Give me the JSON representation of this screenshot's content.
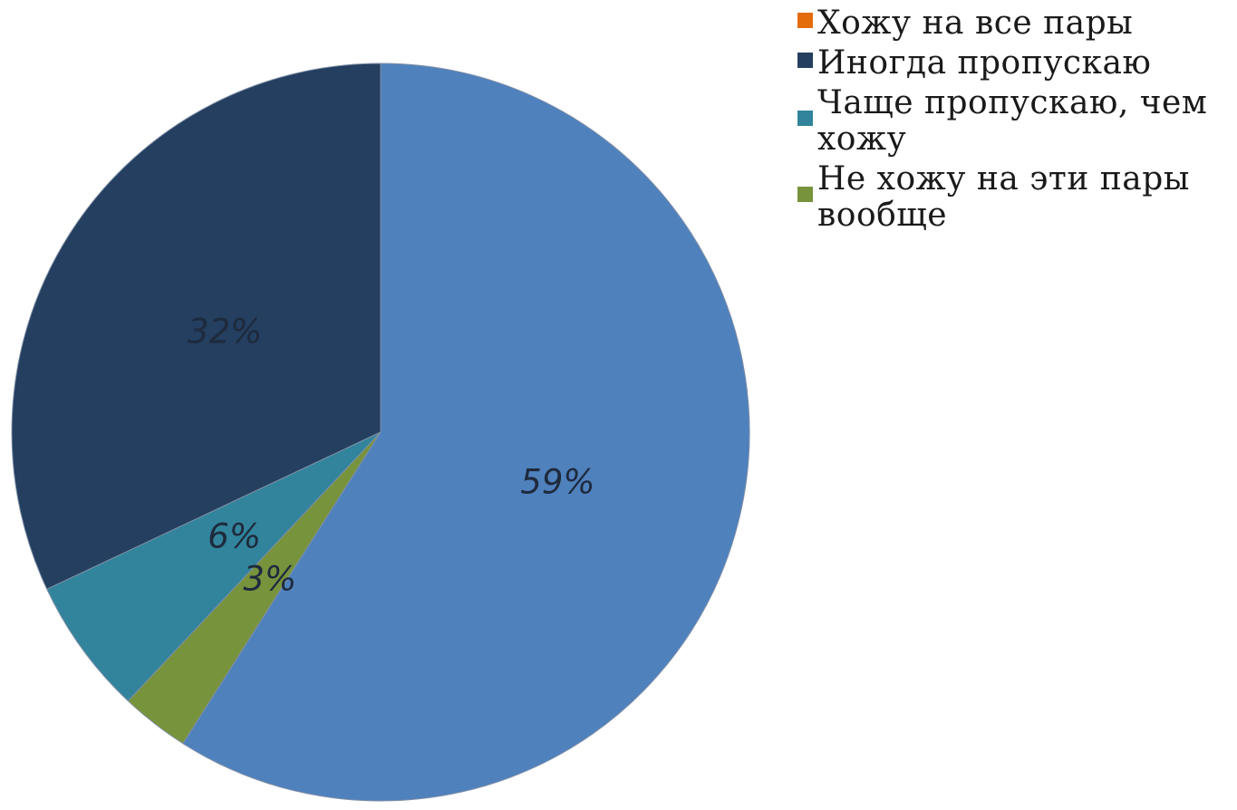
{
  "chart_data": {
    "type": "pie",
    "title": "",
    "slices": [
      {
        "label": "Хожу на все пары",
        "value": 0,
        "data_label": "",
        "color": "#e46c0a"
      },
      {
        "label": "Иногда пропускаю",
        "value": 32,
        "data_label": "32%",
        "color": "#243f60"
      },
      {
        "label": "Чаще пропускаю, чем хожу",
        "value": 6,
        "data_label": "6%",
        "color": "#31849b"
      },
      {
        "label": "Не хожу на эти пары вообще",
        "value": 3,
        "data_label": "3%",
        "color": "#77933c"
      },
      {
        "label": "",
        "value": 59,
        "data_label": "59%",
        "color": "#4f81bd"
      }
    ],
    "legend": {
      "placement": "top-right",
      "entries": [
        {
          "text": "Хожу на все пары",
          "color": "#e46c0a"
        },
        {
          "text": "Иногда пропускаю",
          "color": "#243f60"
        },
        {
          "text": "Чаще пропускаю, чем хожу",
          "color": "#31849b"
        },
        {
          "text": "Не хожу на эти пары вообще",
          "color": "#77933c"
        }
      ]
    }
  }
}
